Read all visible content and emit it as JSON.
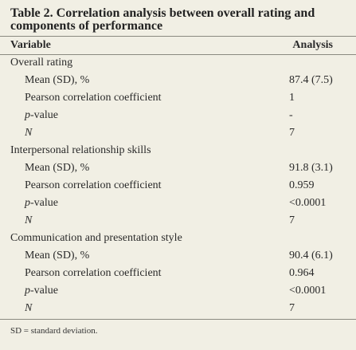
{
  "title": "Table 2. Correlation analysis between overall rating and components of performance",
  "header": {
    "variable": "Variable",
    "analysis": "Analysis"
  },
  "groups": [
    {
      "label": "Overall rating",
      "rows": [
        {
          "pre": "Mean (SD), %",
          "ital": "",
          "post": "",
          "value": "87.4 (7.5)"
        },
        {
          "pre": "Pearson correlation coefficient",
          "ital": "",
          "post": "",
          "value": "1"
        },
        {
          "pre": "",
          "ital": "p",
          "post": "-value",
          "value": "-"
        },
        {
          "pre": "",
          "ital": "N",
          "post": "",
          "value": "7"
        }
      ]
    },
    {
      "label": "Interpersonal relationship skills",
      "rows": [
        {
          "pre": "Mean (SD), %",
          "ital": "",
          "post": "",
          "value": "91.8 (3.1)"
        },
        {
          "pre": "Pearson correlation coefficient",
          "ital": "",
          "post": "",
          "value": "0.959"
        },
        {
          "pre": "",
          "ital": "p",
          "post": "-value",
          "value": "<0.0001"
        },
        {
          "pre": "",
          "ital": "N",
          "post": "",
          "value": "7"
        }
      ]
    },
    {
      "label": "Communication and presentation style",
      "rows": [
        {
          "pre": "Mean (SD), %",
          "ital": "",
          "post": "",
          "value": "90.4 (6.1)"
        },
        {
          "pre": "Pearson correlation coefficient",
          "ital": "",
          "post": "",
          "value": "0.964"
        },
        {
          "pre": "",
          "ital": "p",
          "post": "-value",
          "value": "<0.0001"
        },
        {
          "pre": "",
          "ital": "N",
          "post": "",
          "value": "7"
        }
      ]
    }
  ],
  "footnote": "SD = standard deviation."
}
